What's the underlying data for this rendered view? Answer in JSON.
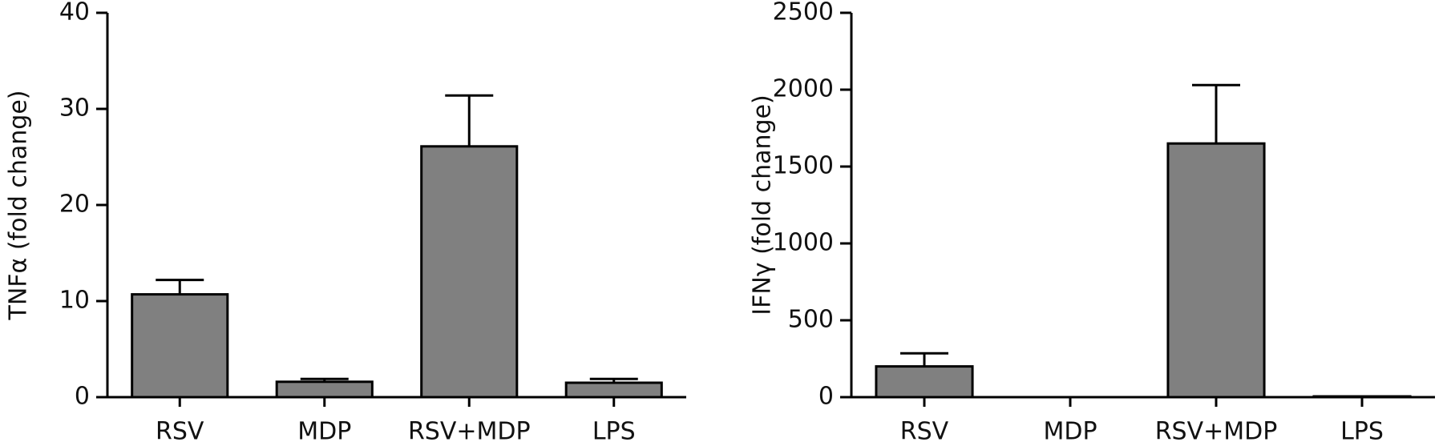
{
  "chart_data": [
    {
      "type": "bar",
      "ylabel": "TNFα (fold change)",
      "categories": [
        "RSV",
        "MDP",
        "RSV+MDP",
        "LPS"
      ],
      "values": [
        10.7,
        1.6,
        26.1,
        1.5
      ],
      "errors": [
        1.5,
        0.3,
        5.3,
        0.4
      ],
      "color": "#808080",
      "ylim": [
        0,
        40
      ],
      "yticks": [
        0,
        10,
        20,
        30,
        40
      ]
    },
    {
      "type": "bar",
      "ylabel": "IFNγ (fold change)",
      "categories": [
        "RSV",
        "MDP",
        "RSV+MDP",
        "LPS"
      ],
      "values": [
        200,
        0,
        1650,
        5
      ],
      "errors": [
        85,
        0,
        380,
        0
      ],
      "color": "#808080",
      "ylim": [
        0,
        2500
      ],
      "yticks": [
        0,
        500,
        1000,
        1500,
        2000,
        2500
      ]
    }
  ]
}
